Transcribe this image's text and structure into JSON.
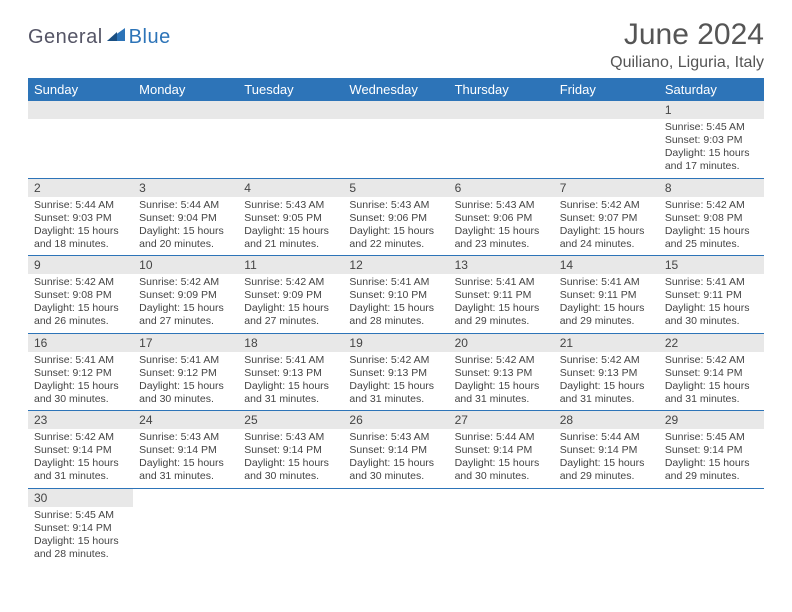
{
  "logo": {
    "text1": "General",
    "text2": "Blue"
  },
  "title": "June 2024",
  "location": "Quiliano, Liguria, Italy",
  "colors": {
    "header_bg": "#2d74b8",
    "daynum_bg": "#e8e8e8",
    "border": "#2d74b8"
  },
  "weekdays": [
    "Sunday",
    "Monday",
    "Tuesday",
    "Wednesday",
    "Thursday",
    "Friday",
    "Saturday"
  ],
  "weeks": [
    [
      null,
      null,
      null,
      null,
      null,
      null,
      {
        "n": "1",
        "sr": "5:45 AM",
        "ss": "9:03 PM",
        "dl": "15 hours and 17 minutes."
      }
    ],
    [
      {
        "n": "2",
        "sr": "5:44 AM",
        "ss": "9:03 PM",
        "dl": "15 hours and 18 minutes."
      },
      {
        "n": "3",
        "sr": "5:44 AM",
        "ss": "9:04 PM",
        "dl": "15 hours and 20 minutes."
      },
      {
        "n": "4",
        "sr": "5:43 AM",
        "ss": "9:05 PM",
        "dl": "15 hours and 21 minutes."
      },
      {
        "n": "5",
        "sr": "5:43 AM",
        "ss": "9:06 PM",
        "dl": "15 hours and 22 minutes."
      },
      {
        "n": "6",
        "sr": "5:43 AM",
        "ss": "9:06 PM",
        "dl": "15 hours and 23 minutes."
      },
      {
        "n": "7",
        "sr": "5:42 AM",
        "ss": "9:07 PM",
        "dl": "15 hours and 24 minutes."
      },
      {
        "n": "8",
        "sr": "5:42 AM",
        "ss": "9:08 PM",
        "dl": "15 hours and 25 minutes."
      }
    ],
    [
      {
        "n": "9",
        "sr": "5:42 AM",
        "ss": "9:08 PM",
        "dl": "15 hours and 26 minutes."
      },
      {
        "n": "10",
        "sr": "5:42 AM",
        "ss": "9:09 PM",
        "dl": "15 hours and 27 minutes."
      },
      {
        "n": "11",
        "sr": "5:42 AM",
        "ss": "9:09 PM",
        "dl": "15 hours and 27 minutes."
      },
      {
        "n": "12",
        "sr": "5:41 AM",
        "ss": "9:10 PM",
        "dl": "15 hours and 28 minutes."
      },
      {
        "n": "13",
        "sr": "5:41 AM",
        "ss": "9:11 PM",
        "dl": "15 hours and 29 minutes."
      },
      {
        "n": "14",
        "sr": "5:41 AM",
        "ss": "9:11 PM",
        "dl": "15 hours and 29 minutes."
      },
      {
        "n": "15",
        "sr": "5:41 AM",
        "ss": "9:11 PM",
        "dl": "15 hours and 30 minutes."
      }
    ],
    [
      {
        "n": "16",
        "sr": "5:41 AM",
        "ss": "9:12 PM",
        "dl": "15 hours and 30 minutes."
      },
      {
        "n": "17",
        "sr": "5:41 AM",
        "ss": "9:12 PM",
        "dl": "15 hours and 30 minutes."
      },
      {
        "n": "18",
        "sr": "5:41 AM",
        "ss": "9:13 PM",
        "dl": "15 hours and 31 minutes."
      },
      {
        "n": "19",
        "sr": "5:42 AM",
        "ss": "9:13 PM",
        "dl": "15 hours and 31 minutes."
      },
      {
        "n": "20",
        "sr": "5:42 AM",
        "ss": "9:13 PM",
        "dl": "15 hours and 31 minutes."
      },
      {
        "n": "21",
        "sr": "5:42 AM",
        "ss": "9:13 PM",
        "dl": "15 hours and 31 minutes."
      },
      {
        "n": "22",
        "sr": "5:42 AM",
        "ss": "9:14 PM",
        "dl": "15 hours and 31 minutes."
      }
    ],
    [
      {
        "n": "23",
        "sr": "5:42 AM",
        "ss": "9:14 PM",
        "dl": "15 hours and 31 minutes."
      },
      {
        "n": "24",
        "sr": "5:43 AM",
        "ss": "9:14 PM",
        "dl": "15 hours and 31 minutes."
      },
      {
        "n": "25",
        "sr": "5:43 AM",
        "ss": "9:14 PM",
        "dl": "15 hours and 30 minutes."
      },
      {
        "n": "26",
        "sr": "5:43 AM",
        "ss": "9:14 PM",
        "dl": "15 hours and 30 minutes."
      },
      {
        "n": "27",
        "sr": "5:44 AM",
        "ss": "9:14 PM",
        "dl": "15 hours and 30 minutes."
      },
      {
        "n": "28",
        "sr": "5:44 AM",
        "ss": "9:14 PM",
        "dl": "15 hours and 29 minutes."
      },
      {
        "n": "29",
        "sr": "5:45 AM",
        "ss": "9:14 PM",
        "dl": "15 hours and 29 minutes."
      }
    ],
    [
      {
        "n": "30",
        "sr": "5:45 AM",
        "ss": "9:14 PM",
        "dl": "15 hours and 28 minutes."
      },
      null,
      null,
      null,
      null,
      null,
      null
    ]
  ],
  "labels": {
    "sunrise": "Sunrise:",
    "sunset": "Sunset:",
    "daylight": "Daylight:"
  }
}
